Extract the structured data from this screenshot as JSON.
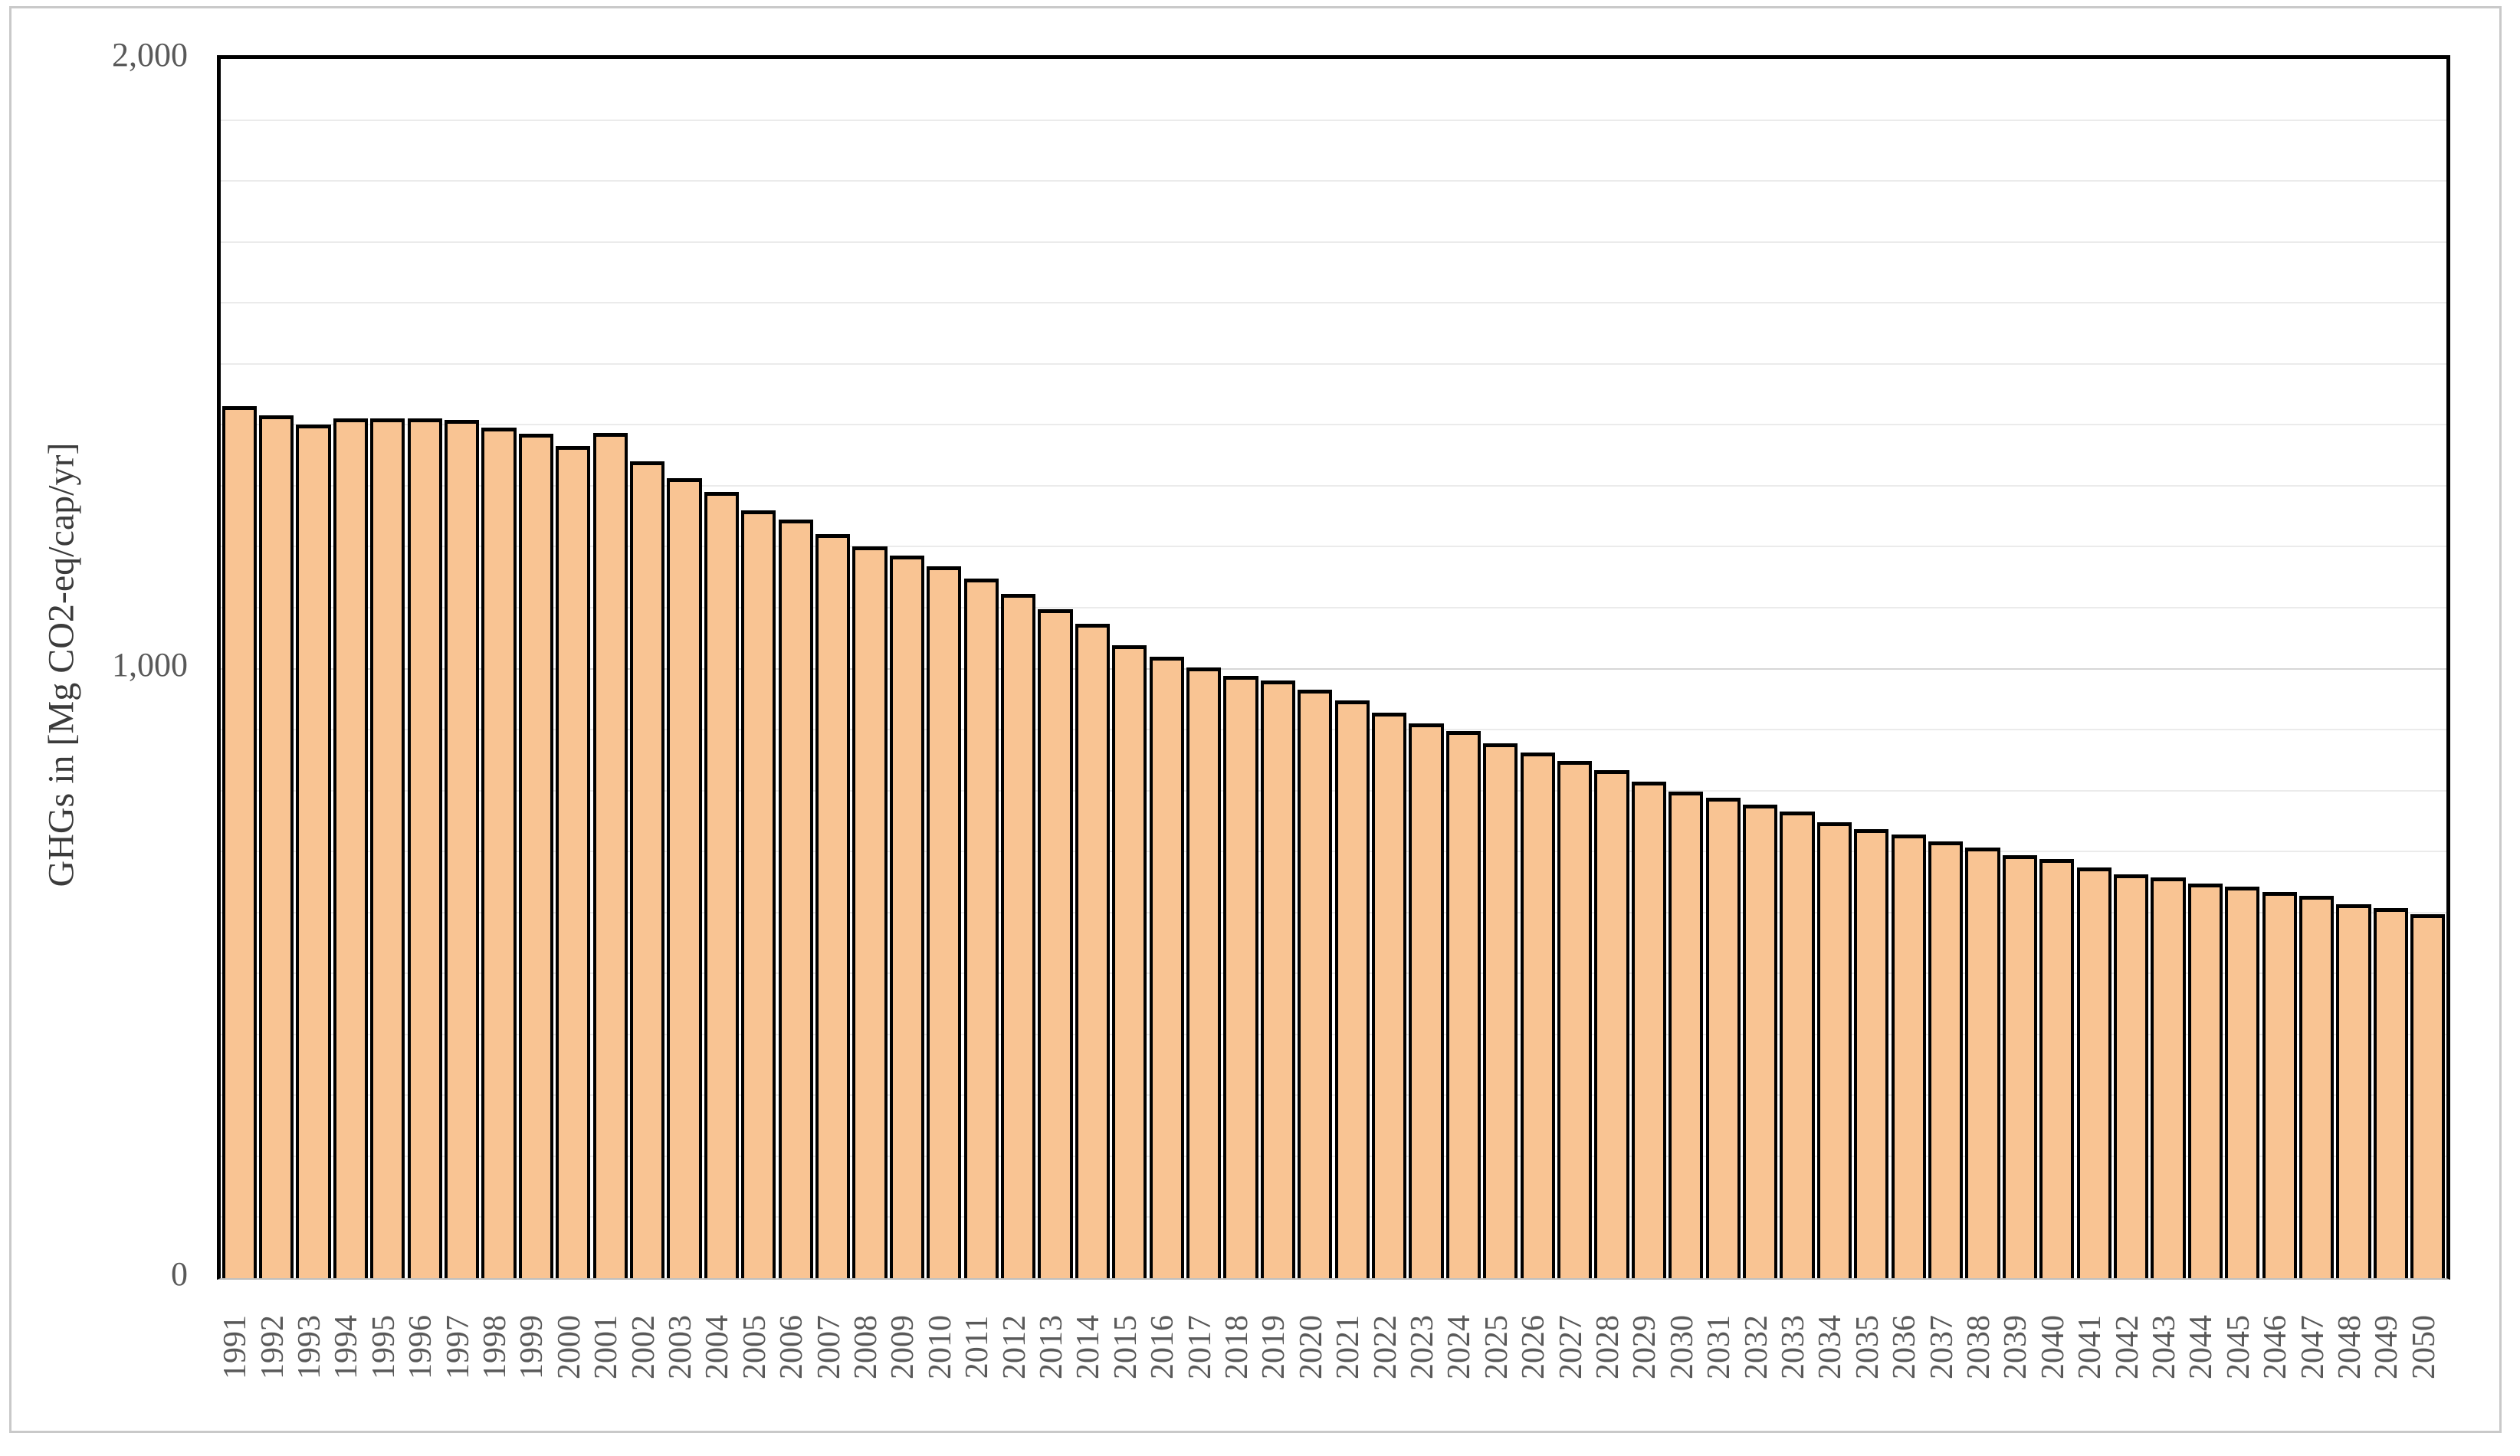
{
  "chart_data": {
    "type": "bar",
    "title": "",
    "xlabel": "",
    "ylabel": "GHGs in [Mg CO2-eq/cap/yr]",
    "ylim": [
      0,
      2000
    ],
    "ytick_values": [
      0,
      1000,
      2000
    ],
    "ytick_labels": [
      "0",
      "1,000",
      "2,000"
    ],
    "gridline_step": 100,
    "grid_on": true,
    "legend": null,
    "categories": [
      "1991",
      "1992",
      "1993",
      "1994",
      "1995",
      "1996",
      "1997",
      "1998",
      "1999",
      "2000",
      "2001",
      "2002",
      "2003",
      "2004",
      "2005",
      "2006",
      "2007",
      "2008",
      "2009",
      "2010",
      "2011",
      "2012",
      "2013",
      "2014",
      "2015",
      "2016",
      "2017",
      "2018",
      "2019",
      "2020",
      "2021",
      "2022",
      "2023",
      "2024",
      "2025",
      "2026",
      "2027",
      "2028",
      "2029",
      "2030",
      "2031",
      "2032",
      "2033",
      "2034",
      "2035",
      "2036",
      "2037",
      "2038",
      "2039",
      "2040",
      "2041",
      "2042",
      "2043",
      "2044",
      "2045",
      "2046",
      "2047",
      "2048",
      "2049",
      "2050"
    ],
    "values": [
      1430,
      1415,
      1400,
      1410,
      1410,
      1410,
      1408,
      1395,
      1385,
      1365,
      1387,
      1340,
      1312,
      1290,
      1260,
      1245,
      1220,
      1200,
      1185,
      1168,
      1148,
      1122,
      1097,
      1073,
      1038,
      1020,
      1002,
      988,
      980,
      965,
      948,
      928,
      910,
      898,
      878,
      862,
      848,
      833,
      815,
      798,
      788,
      777,
      766,
      748,
      737,
      728,
      717,
      707,
      694,
      687,
      674,
      663,
      657,
      647,
      642,
      633,
      627,
      613,
      607,
      597
    ],
    "colors": {
      "bar_fill": "#F9C493",
      "bar_border": "#000000",
      "grid_minor": "#EBEBEB",
      "grid_major": "#D6D6D6",
      "plot_border": "#000000",
      "axis_line": "#BFBFBF",
      "figure_border": "#C9C9C9",
      "tick_text": "#595959",
      "axis_title_text": "#3B3B3B",
      "background": "#FFFFFF"
    }
  }
}
